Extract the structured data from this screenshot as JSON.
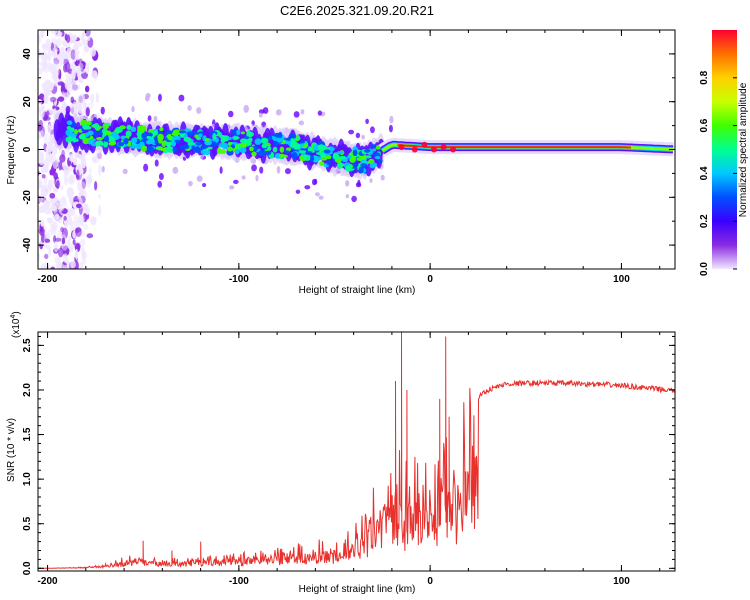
{
  "title": "C2E6.2025.321.09.20.R21",
  "chart_data": [
    {
      "type": "heatmap",
      "title": "C2E6.2025.321.09.20.R21",
      "xlabel": "Height of straight line (km)",
      "ylabel": "Frequency (Hz)",
      "xlim": [
        -205,
        128
      ],
      "ylim": [
        -50,
        50
      ],
      "xticks": [
        -200,
        -100,
        0,
        100
      ],
      "yticks": [
        -40,
        -20,
        0,
        20,
        40
      ],
      "colorbar": {
        "label": "Normalized spectral amplitude",
        "range": [
          0,
          1
        ],
        "ticks": [
          0.0,
          0.2,
          0.4,
          0.6,
          0.8
        ],
        "tick_labels": [
          "0.0",
          "0.2",
          "0.4",
          "0.6",
          "0.8"
        ],
        "colors": [
          "#f0e6ff",
          "#8a2be2",
          "#3a00ff",
          "#0050ff",
          "#00c8ff",
          "#00ff90",
          "#40ff00",
          "#c8ff00",
          "#ffd000",
          "#ff7000",
          "#ff0030"
        ]
      },
      "center_line": [
        [
          -195,
          8
        ],
        [
          -170,
          6
        ],
        [
          -140,
          4
        ],
        [
          -100,
          3
        ],
        [
          -70,
          1
        ],
        [
          -50,
          -3
        ],
        [
          -35,
          -5
        ],
        [
          -28,
          -2
        ],
        [
          -20,
          2
        ],
        [
          0,
          1
        ],
        [
          20,
          1
        ],
        [
          60,
          1
        ],
        [
          100,
          1
        ],
        [
          128,
          0
        ]
      ]
    },
    {
      "type": "line",
      "xlabel": "Height of straight line (km)",
      "ylabel": "SNR (10 * v/v)",
      "exponent_label": "(x10",
      "exponent_power": "4",
      "xlim": [
        -205,
        128
      ],
      "ylim": [
        -0.03,
        2.65
      ],
      "xticks": [
        -200,
        -100,
        0,
        100
      ],
      "yticks": [
        0.0,
        0.5,
        1.0,
        1.5,
        2.0,
        2.5
      ],
      "ytick_labels": [
        "0.0",
        "0.5",
        "1.0",
        "1.5",
        "2.0",
        "2.5"
      ],
      "color": "#e8302c",
      "series": [
        {
          "name": "SNR",
          "envelope_x": [
            -205,
            -185,
            -170,
            -160,
            -150,
            -140,
            -125,
            -110,
            -100,
            -90,
            -80,
            -70,
            -60,
            -50,
            -40,
            -35,
            -30,
            -25,
            -20,
            -15,
            -10,
            -5,
            0,
            5,
            10,
            15,
            20,
            25,
            30,
            40,
            60,
            80,
            100,
            128
          ],
          "envelope_y": [
            0.0,
            0.01,
            0.04,
            0.12,
            0.14,
            0.1,
            0.1,
            0.14,
            0.15,
            0.18,
            0.2,
            0.24,
            0.28,
            0.33,
            0.45,
            0.55,
            0.8,
            1.0,
            1.15,
            1.3,
            1.2,
            1.1,
            1.3,
            1.25,
            1.3,
            1.5,
            1.75,
            1.92,
            2.0,
            2.07,
            2.08,
            2.07,
            2.05,
            1.99
          ],
          "spikes": [
            [
              -150,
              0.31
            ],
            [
              -135,
              0.2
            ],
            [
              -120,
              0.3
            ],
            [
              -18,
              2.1
            ],
            [
              -15,
              2.65
            ],
            [
              -12,
              2.0
            ],
            [
              8,
              2.6
            ],
            [
              10,
              1.7
            ],
            [
              5,
              1.9
            ]
          ]
        }
      ]
    }
  ]
}
